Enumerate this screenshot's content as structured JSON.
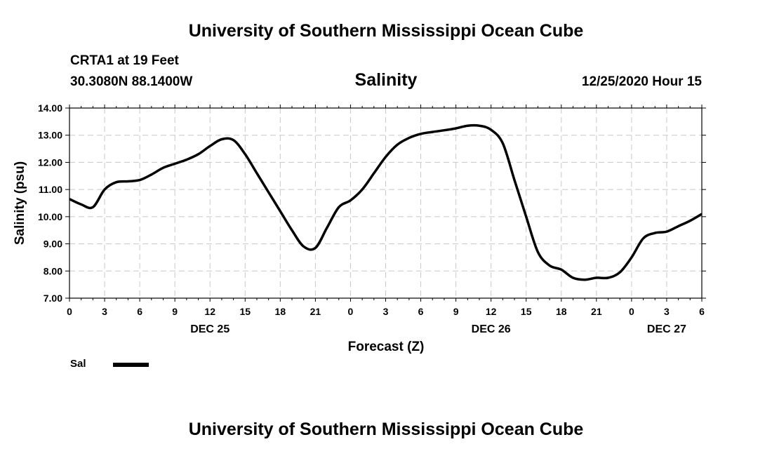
{
  "header": {
    "title": "University of Southern Mississippi Ocean Cube",
    "station": "CRTA1 at 19 Feet",
    "coords": "30.3080N 88.1400W",
    "datetime": "12/25/2020 Hour 15"
  },
  "footer": {
    "title": "University of Southern Mississippi Ocean Cube"
  },
  "legend": {
    "label": "Sal"
  },
  "chart_data": {
    "type": "line",
    "title": "Salinity",
    "xlabel": "Forecast (Z)",
    "ylabel": "Salinity (psu)",
    "ylim": [
      7,
      14
    ],
    "xlim": [
      0,
      54
    ],
    "grid": true,
    "y_ticks": [
      "7.00",
      "8.00",
      "9.00",
      "10.00",
      "11.00",
      "12.00",
      "13.00",
      "14.00"
    ],
    "x_ticks": [
      "0",
      "3",
      "6",
      "9",
      "12",
      "15",
      "18",
      "21",
      "0",
      "3",
      "6",
      "9",
      "12",
      "15",
      "18",
      "21",
      "0",
      "3",
      "6"
    ],
    "day_labels": [
      {
        "label": "DEC 25",
        "hour": 12
      },
      {
        "label": "DEC 26",
        "hour": 36
      },
      {
        "label": "DEC 27",
        "hour": 51
      }
    ],
    "series": [
      {
        "name": "Sal",
        "color": "#000000",
        "x": [
          0,
          1,
          2,
          3,
          4,
          5,
          6,
          7,
          8,
          9,
          10,
          11,
          12,
          13,
          14,
          15,
          16,
          17,
          18,
          19,
          20,
          21,
          22,
          23,
          24,
          25,
          26,
          27,
          28,
          29,
          30,
          31,
          32,
          33,
          34,
          35,
          36,
          37,
          38,
          39,
          40,
          41,
          42,
          43,
          44,
          45,
          46,
          47,
          48,
          49,
          50,
          51,
          52,
          53,
          54
        ],
        "values": [
          10.65,
          10.45,
          10.35,
          11.0,
          11.27,
          11.3,
          11.35,
          11.55,
          11.8,
          11.95,
          12.1,
          12.3,
          12.6,
          12.85,
          12.82,
          12.3,
          11.6,
          10.9,
          10.2,
          9.5,
          8.9,
          8.85,
          9.6,
          10.35,
          10.6,
          11.0,
          11.6,
          12.2,
          12.65,
          12.9,
          13.05,
          13.12,
          13.18,
          13.25,
          13.35,
          13.35,
          13.2,
          12.7,
          11.35,
          10.0,
          8.7,
          8.2,
          8.05,
          7.75,
          7.68,
          7.75,
          7.75,
          7.95,
          8.5,
          9.2,
          9.4,
          9.45,
          9.65,
          9.85,
          10.1
        ]
      }
    ]
  }
}
